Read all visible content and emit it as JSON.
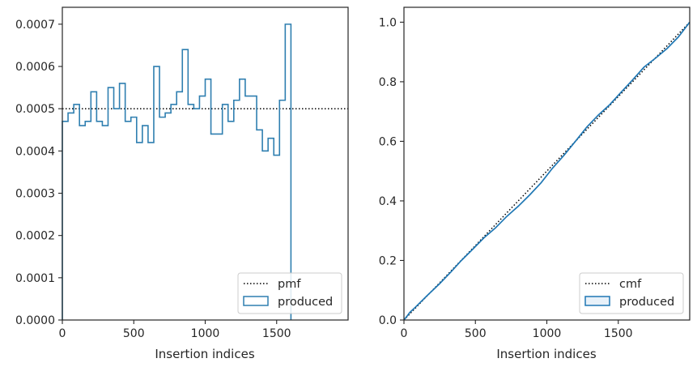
{
  "chart_data": [
    {
      "type": "line",
      "xlabel": "Insertion indices",
      "ylabel": "",
      "xlim": [
        0,
        2000
      ],
      "ylim": [
        0,
        0.00074
      ],
      "xticks": [
        0,
        500,
        1000,
        1500
      ],
      "xtick_labels": [
        "0",
        "500",
        "1000",
        "1500"
      ],
      "yticks": [
        0,
        0.0001,
        0.0002,
        0.0003,
        0.0004,
        0.0005,
        0.0006,
        0.0007
      ],
      "ytick_labels": [
        "0.0000",
        "0.0001",
        "0.0002",
        "0.0003",
        "0.0004",
        "0.0005",
        "0.0006",
        "0.0007"
      ],
      "grid": false,
      "legend_position": "lower-right",
      "series": [
        {
          "name": "pmf",
          "style": "dotted",
          "color": "#000000",
          "x": [
            0,
            2000
          ],
          "values": [
            0.0005,
            0.0005
          ]
        },
        {
          "name": "produced",
          "style": "step",
          "color": "#2f7fb0",
          "bin_width": 40,
          "x_start": 0,
          "values": [
            0.00047,
            0.00049,
            0.00051,
            0.00046,
            0.00047,
            0.00054,
            0.00047,
            0.00046,
            0.00055,
            0.0005,
            0.00056,
            0.00047,
            0.00048,
            0.00042,
            0.00046,
            0.00042,
            0.0006,
            0.00048,
            0.00049,
            0.00051,
            0.00054,
            0.00064,
            0.00051,
            0.0005,
            0.00053,
            0.00057,
            0.00044,
            0.00044,
            0.00051,
            0.00047,
            0.00052,
            0.00057,
            0.00053,
            0.00053,
            0.00045,
            0.0004,
            0.00043,
            0.00039,
            0.00052,
            0.0007
          ]
        }
      ]
    },
    {
      "type": "line",
      "xlabel": "Insertion indices",
      "ylabel": "",
      "xlim": [
        0,
        2000
      ],
      "ylim": [
        0,
        1.05
      ],
      "xticks": [
        0,
        500,
        1000,
        1500
      ],
      "xtick_labels": [
        "0",
        "500",
        "1000",
        "1500"
      ],
      "yticks": [
        0,
        0.2,
        0.4,
        0.6,
        0.8,
        1.0
      ],
      "ytick_labels": [
        "0.0",
        "0.2",
        "0.4",
        "0.6",
        "0.8",
        "1.0"
      ],
      "grid": false,
      "legend_position": "lower-right",
      "series": [
        {
          "name": "cmf",
          "style": "dotted",
          "color": "#000000",
          "x": [
            0,
            2000
          ],
          "values": [
            0,
            1.0
          ]
        },
        {
          "name": "produced",
          "style": "line",
          "color": "#1f77b4",
          "x": [
            0,
            20,
            40,
            80,
            160,
            250,
            330,
            400,
            480,
            560,
            640,
            720,
            800,
            880,
            960,
            1040,
            1120,
            1200,
            1280,
            1360,
            1440,
            1520,
            1600,
            1680,
            1760,
            1840,
            1920,
            2000
          ],
          "values": [
            0,
            0.012,
            0.025,
            0.043,
            0.081,
            0.122,
            0.162,
            0.199,
            0.237,
            0.276,
            0.309,
            0.348,
            0.382,
            0.42,
            0.461,
            0.51,
            0.553,
            0.6,
            0.648,
            0.688,
            0.723,
            0.765,
            0.806,
            0.849,
            0.879,
            0.911,
            0.95,
            1.0
          ]
        }
      ]
    }
  ]
}
